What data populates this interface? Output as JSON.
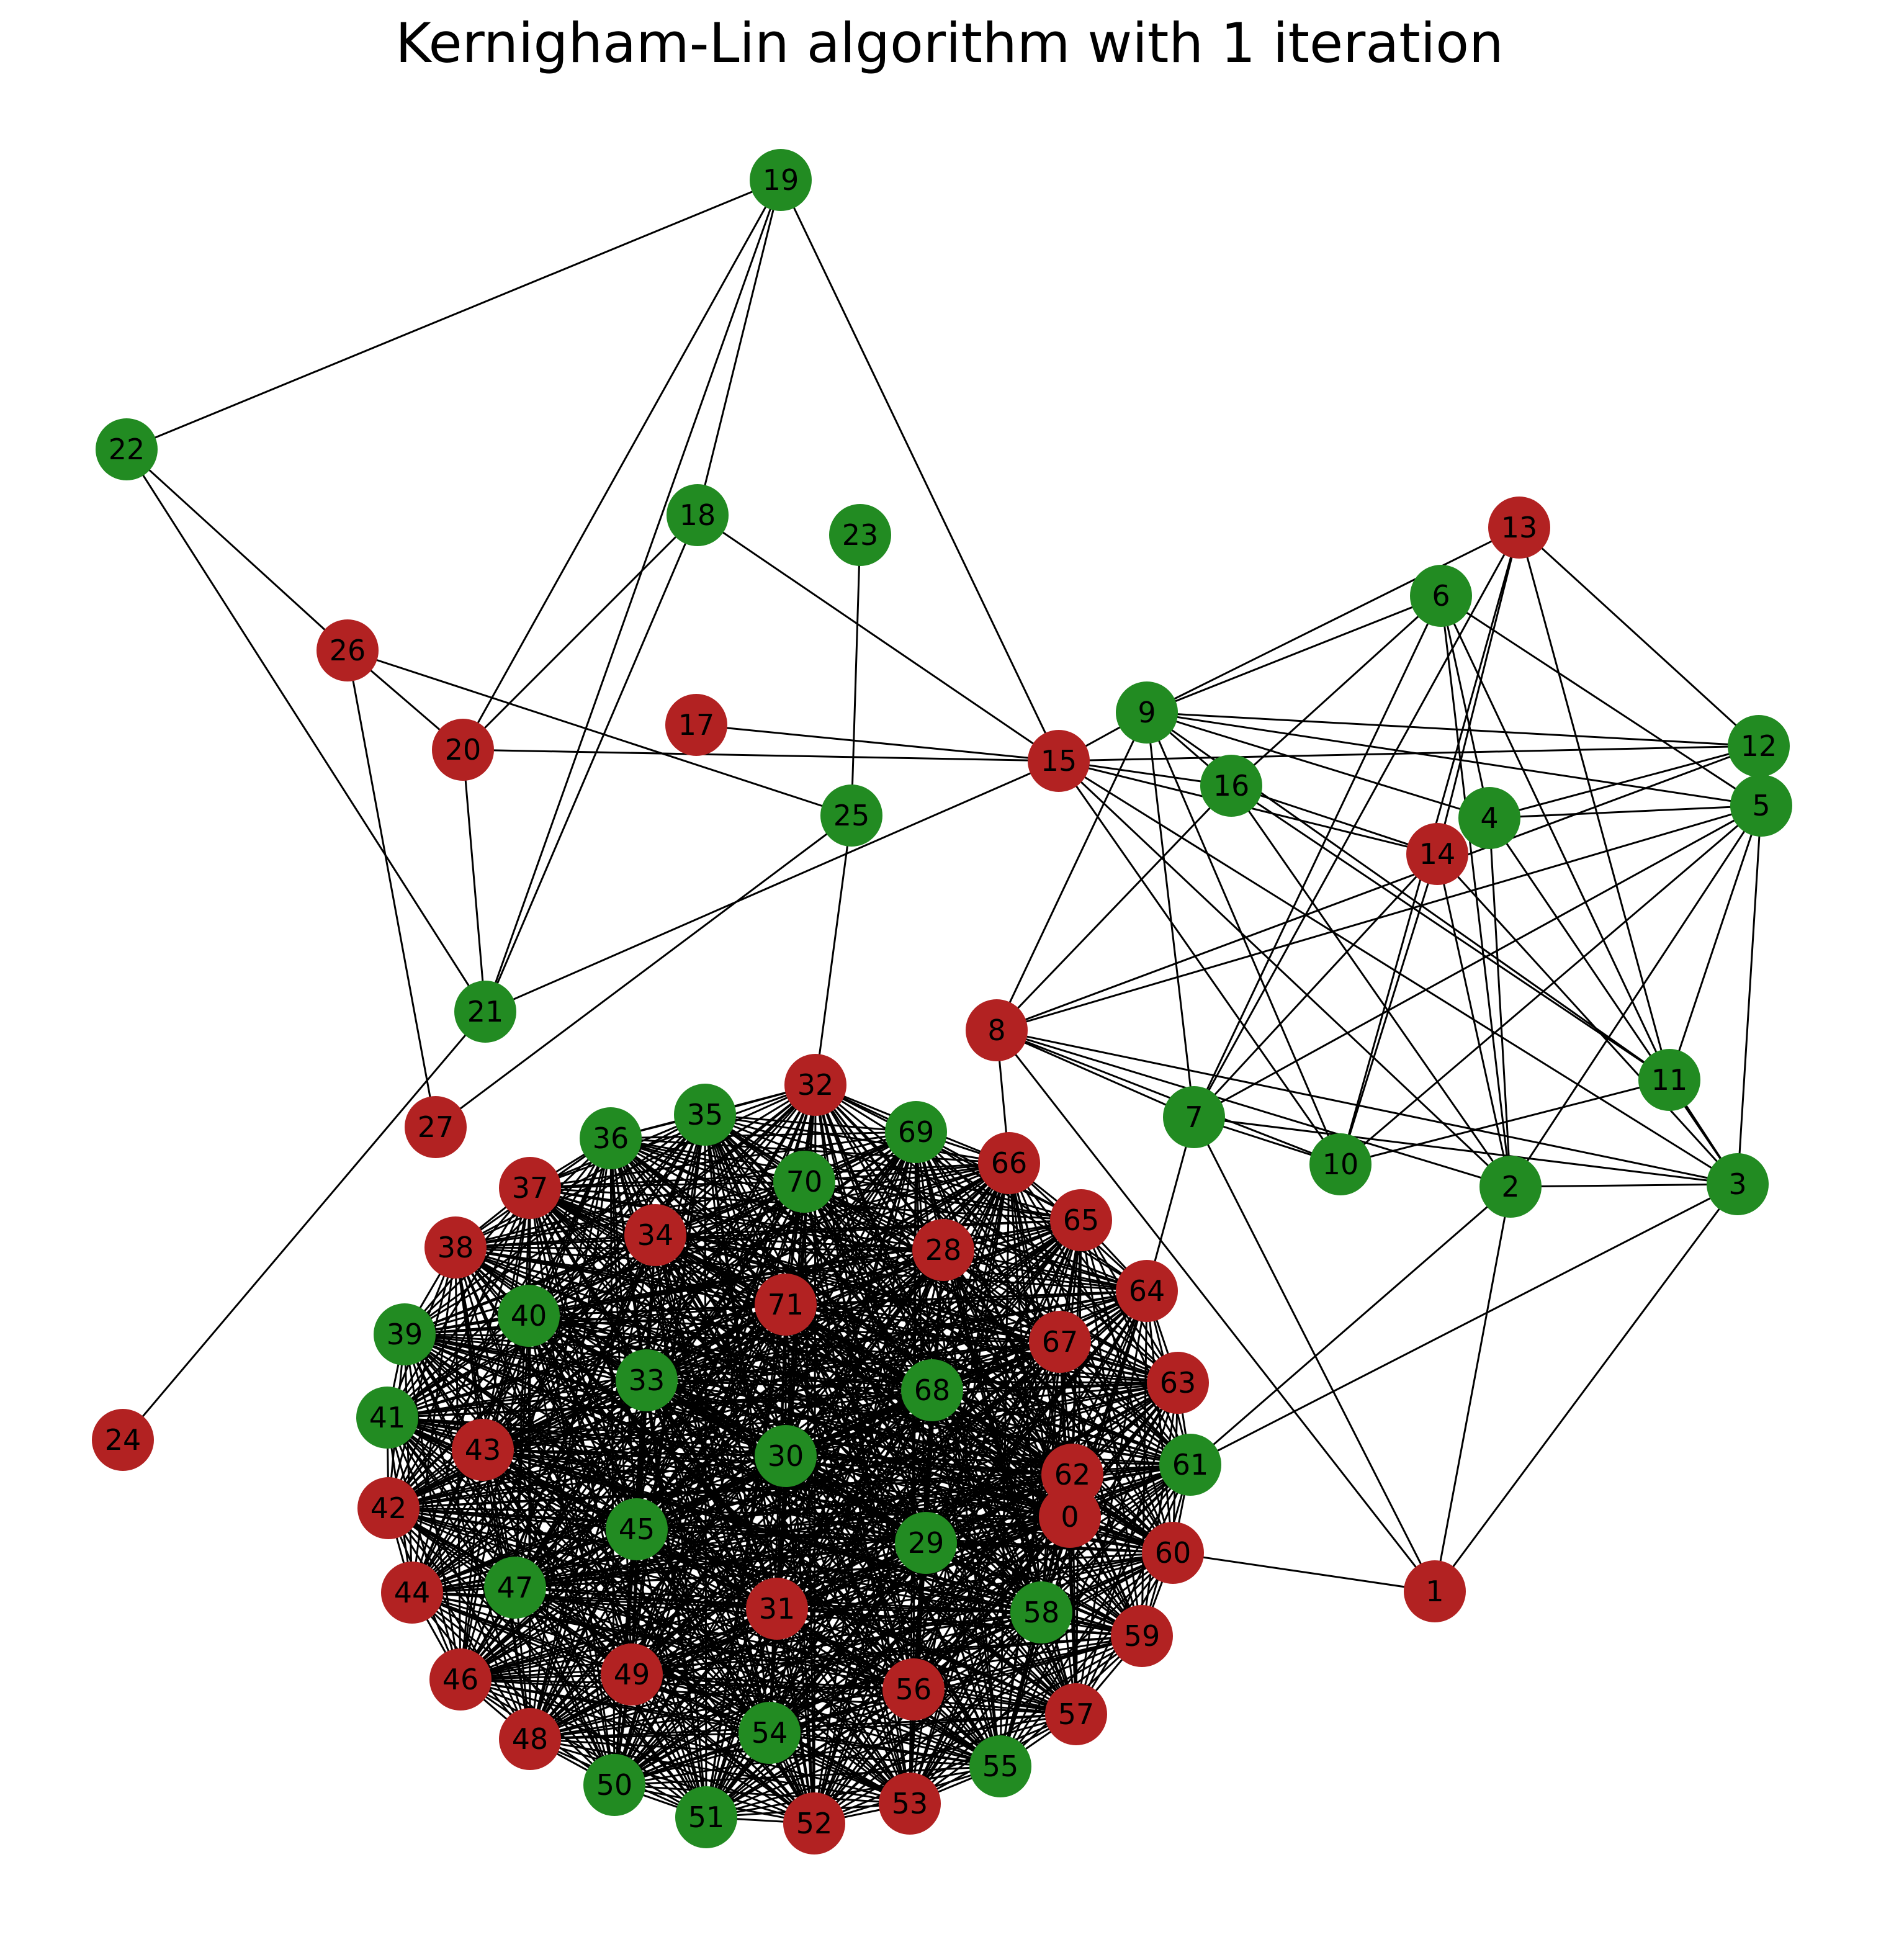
{
  "title": "Kernigham-Lin algorithm with 1 iteration",
  "colors": {
    "partition_a": "#228b22",
    "partition_b": "#b22222",
    "edge": "#000000"
  },
  "nodes": [
    {
      "id": "0",
      "group": "b"
    },
    {
      "id": "1",
      "group": "b"
    },
    {
      "id": "2",
      "group": "a"
    },
    {
      "id": "3",
      "group": "a"
    },
    {
      "id": "4",
      "group": "a"
    },
    {
      "id": "5",
      "group": "a"
    },
    {
      "id": "6",
      "group": "a"
    },
    {
      "id": "7",
      "group": "a"
    },
    {
      "id": "8",
      "group": "b"
    },
    {
      "id": "9",
      "group": "a"
    },
    {
      "id": "10",
      "group": "a"
    },
    {
      "id": "11",
      "group": "a"
    },
    {
      "id": "12",
      "group": "a"
    },
    {
      "id": "13",
      "group": "b"
    },
    {
      "id": "14",
      "group": "b"
    },
    {
      "id": "15",
      "group": "b"
    },
    {
      "id": "16",
      "group": "a"
    },
    {
      "id": "17",
      "group": "b"
    },
    {
      "id": "18",
      "group": "a"
    },
    {
      "id": "19",
      "group": "a"
    },
    {
      "id": "20",
      "group": "b"
    },
    {
      "id": "21",
      "group": "a"
    },
    {
      "id": "22",
      "group": "a"
    },
    {
      "id": "23",
      "group": "a"
    },
    {
      "id": "24",
      "group": "b"
    },
    {
      "id": "25",
      "group": "a"
    },
    {
      "id": "26",
      "group": "b"
    },
    {
      "id": "27",
      "group": "b"
    },
    {
      "id": "28",
      "group": "b"
    },
    {
      "id": "29",
      "group": "a"
    },
    {
      "id": "30",
      "group": "a"
    },
    {
      "id": "31",
      "group": "b"
    },
    {
      "id": "32",
      "group": "b"
    },
    {
      "id": "33",
      "group": "a"
    },
    {
      "id": "34",
      "group": "b"
    },
    {
      "id": "35",
      "group": "a"
    },
    {
      "id": "36",
      "group": "a"
    },
    {
      "id": "37",
      "group": "b"
    },
    {
      "id": "38",
      "group": "b"
    },
    {
      "id": "39",
      "group": "a"
    },
    {
      "id": "40",
      "group": "a"
    },
    {
      "id": "41",
      "group": "a"
    },
    {
      "id": "42",
      "group": "b"
    },
    {
      "id": "43",
      "group": "b"
    },
    {
      "id": "44",
      "group": "b"
    },
    {
      "id": "45",
      "group": "a"
    },
    {
      "id": "46",
      "group": "b"
    },
    {
      "id": "47",
      "group": "a"
    },
    {
      "id": "48",
      "group": "b"
    },
    {
      "id": "49",
      "group": "b"
    },
    {
      "id": "50",
      "group": "a"
    },
    {
      "id": "51",
      "group": "a"
    },
    {
      "id": "52",
      "group": "b"
    },
    {
      "id": "53",
      "group": "b"
    },
    {
      "id": "54",
      "group": "a"
    },
    {
      "id": "55",
      "group": "a"
    },
    {
      "id": "56",
      "group": "b"
    },
    {
      "id": "57",
      "group": "b"
    },
    {
      "id": "58",
      "group": "a"
    },
    {
      "id": "59",
      "group": "b"
    },
    {
      "id": "60",
      "group": "b"
    },
    {
      "id": "61",
      "group": "a"
    },
    {
      "id": "62",
      "group": "b"
    },
    {
      "id": "63",
      "group": "b"
    },
    {
      "id": "64",
      "group": "b"
    },
    {
      "id": "65",
      "group": "b"
    },
    {
      "id": "66",
      "group": "b"
    },
    {
      "id": "67",
      "group": "b"
    },
    {
      "id": "68",
      "group": "a"
    },
    {
      "id": "69",
      "group": "a"
    },
    {
      "id": "70",
      "group": "a"
    },
    {
      "id": "71",
      "group": "b"
    }
  ],
  "edges": [
    [
      "19",
      "22"
    ],
    [
      "19",
      "18"
    ],
    [
      "19",
      "20"
    ],
    [
      "19",
      "21"
    ],
    [
      "19",
      "15"
    ],
    [
      "22",
      "26"
    ],
    [
      "22",
      "21"
    ],
    [
      "26",
      "20"
    ],
    [
      "26",
      "25"
    ],
    [
      "26",
      "27"
    ],
    [
      "18",
      "20"
    ],
    [
      "18",
      "21"
    ],
    [
      "18",
      "15"
    ],
    [
      "20",
      "21"
    ],
    [
      "20",
      "15"
    ],
    [
      "17",
      "15"
    ],
    [
      "23",
      "25"
    ],
    [
      "25",
      "27"
    ],
    [
      "25",
      "32"
    ],
    [
      "21",
      "15"
    ],
    [
      "21",
      "24"
    ],
    [
      "15",
      "9"
    ],
    [
      "15",
      "16"
    ],
    [
      "15",
      "14"
    ],
    [
      "15",
      "12"
    ],
    [
      "15",
      "10"
    ],
    [
      "15",
      "2"
    ],
    [
      "15",
      "3"
    ],
    [
      "9",
      "6"
    ],
    [
      "9",
      "13"
    ],
    [
      "9",
      "8"
    ],
    [
      "9",
      "7"
    ],
    [
      "9",
      "16"
    ],
    [
      "9",
      "4"
    ],
    [
      "9",
      "5"
    ],
    [
      "9",
      "12"
    ],
    [
      "9",
      "11"
    ],
    [
      "9",
      "10"
    ],
    [
      "6",
      "16"
    ],
    [
      "6",
      "7"
    ],
    [
      "6",
      "4"
    ],
    [
      "6",
      "11"
    ],
    [
      "6",
      "5"
    ],
    [
      "6",
      "2"
    ],
    [
      "13",
      "14"
    ],
    [
      "13",
      "12"
    ],
    [
      "13",
      "11"
    ],
    [
      "13",
      "7"
    ],
    [
      "13",
      "10"
    ],
    [
      "16",
      "8"
    ],
    [
      "16",
      "14"
    ],
    [
      "16",
      "2"
    ],
    [
      "16",
      "11"
    ],
    [
      "14",
      "7"
    ],
    [
      "14",
      "3"
    ],
    [
      "14",
      "10"
    ],
    [
      "14",
      "2"
    ],
    [
      "4",
      "5"
    ],
    [
      "4",
      "12"
    ],
    [
      "4",
      "2"
    ],
    [
      "4",
      "3"
    ],
    [
      "5",
      "8"
    ],
    [
      "5",
      "7"
    ],
    [
      "5",
      "11"
    ],
    [
      "5",
      "3"
    ],
    [
      "5",
      "10"
    ],
    [
      "5",
      "2"
    ],
    [
      "12",
      "8"
    ],
    [
      "11",
      "3"
    ],
    [
      "11",
      "10"
    ],
    [
      "8",
      "7"
    ],
    [
      "8",
      "10"
    ],
    [
      "8",
      "2"
    ],
    [
      "8",
      "3"
    ],
    [
      "8",
      "66"
    ],
    [
      "8",
      "1"
    ],
    [
      "7",
      "10"
    ],
    [
      "7",
      "3"
    ],
    [
      "7",
      "64"
    ],
    [
      "7",
      "1"
    ],
    [
      "2",
      "3"
    ],
    [
      "2",
      "1"
    ],
    [
      "2",
      "61"
    ],
    [
      "3",
      "1"
    ],
    [
      "3",
      "61"
    ],
    [
      "60",
      "1"
    ]
  ],
  "clique": [
    "0",
    "28",
    "29",
    "30",
    "31",
    "32",
    "33",
    "34",
    "35",
    "36",
    "37",
    "38",
    "39",
    "40",
    "41",
    "42",
    "43",
    "44",
    "45",
    "46",
    "47",
    "48",
    "49",
    "50",
    "51",
    "52",
    "53",
    "54",
    "55",
    "56",
    "57",
    "58",
    "59",
    "60",
    "61",
    "62",
    "63",
    "64",
    "65",
    "66",
    "67",
    "68",
    "69",
    "70",
    "71"
  ]
}
